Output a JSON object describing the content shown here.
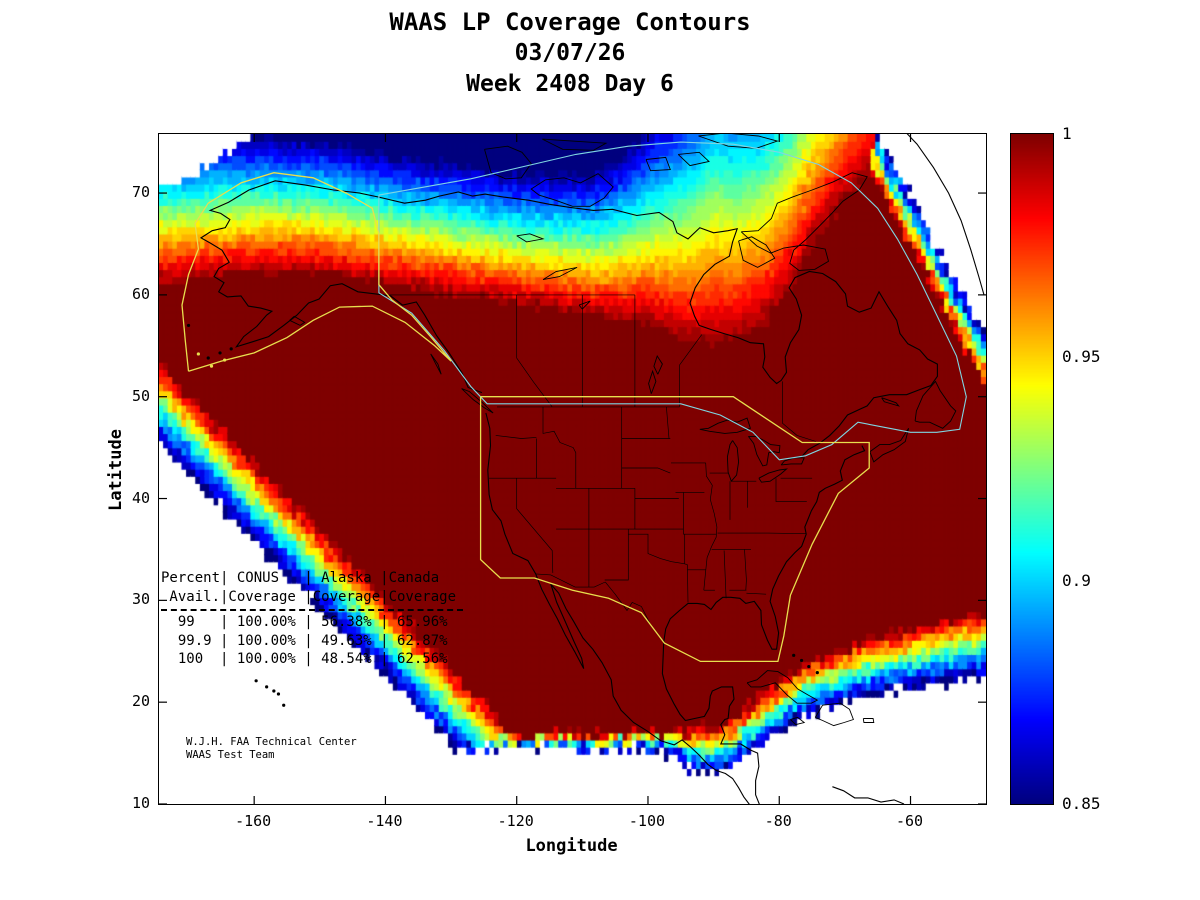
{
  "title": {
    "line1": "WAAS LP Coverage Contours",
    "line2": "03/07/26",
    "line3": "Week 2408 Day 6"
  },
  "axis": {
    "xlabel": "Longitude",
    "ylabel": "Latitude",
    "x_tick_labels": [
      "-160",
      "-140",
      "-120",
      "-100",
      "-80",
      "-60"
    ],
    "y_tick_labels": [
      "10",
      "20",
      "30",
      "40",
      "50",
      "60",
      "70"
    ]
  },
  "colorbar_labels": [
    "1",
    "0.95",
    "0.9",
    "0.85"
  ],
  "coverage_table": {
    "lines": [
      "Percent| CONUS   | Alaska |Canada",
      " Avail.|Coverage |Coverage|Coverage",
      "  99   | 100.00% | 56.38% | 65.96%",
      "  99.9 | 100.00% | 49.63% | 62.87%",
      "  100  | 100.00% | 48.54% | 62.56%"
    ]
  },
  "credit": {
    "line1": "W.J.H. FAA Technical Center",
    "line2": "WAAS Test Team"
  },
  "chart_data": {
    "type": "heatmap",
    "subtype": "filled-contour-coverage-map",
    "title": "WAAS LP Coverage Contours",
    "date": "03/07/26",
    "gps_week": "Week 2408 Day 6",
    "xlabel": "Longitude",
    "ylabel": "Latitude",
    "xlim": [
      -174.5,
      -48.5
    ],
    "ylim": [
      10,
      75.8
    ],
    "x_ticks": [
      -160,
      -140,
      -120,
      -100,
      -80,
      -60
    ],
    "y_ticks": [
      10,
      20,
      30,
      40,
      50,
      60,
      70
    ],
    "grid": false,
    "colorbar": {
      "min": 0.85,
      "max": 1.0,
      "colormap": "jet",
      "ticks": [
        {
          "value": 1.0,
          "label": "1"
        },
        {
          "value": 0.95,
          "label": "0.95"
        },
        {
          "value": 0.9,
          "label": "0.9"
        },
        {
          "value": 0.85,
          "label": "0.85"
        }
      ]
    },
    "availability_table": {
      "columns": [
        "Percent Avail.",
        "CONUS Coverage",
        "Alaska Coverage",
        "Canada Coverage"
      ],
      "rows": [
        {
          "avail": "99",
          "conus": "100.00%",
          "alaska": "56.38%",
          "canada": "65.96%"
        },
        {
          "avail": "99.9",
          "conus": "100.00%",
          "alaska": "49.63%",
          "canada": "62.87%"
        },
        {
          "avail": "100",
          "conus": "100.00%",
          "alaska": "48.54%",
          "canada": "62.56%"
        }
      ]
    },
    "colors": {
      "conus_alaska_boundary": "#e8df4e",
      "canada_boundary": "#7fd6e2",
      "coastline": "#000000",
      "no_coverage": "#ffffff"
    },
    "contour_model": {
      "grid_deg": 0.7,
      "white_threshold": 0.8465,
      "north_edge": [
        [
          -175,
          61
        ],
        [
          -160,
          62
        ],
        [
          -150,
          62
        ],
        [
          -140,
          61
        ],
        [
          -130,
          60
        ],
        [
          -120,
          59
        ],
        [
          -110,
          58
        ],
        [
          -100,
          57
        ],
        [
          -93,
          55
        ],
        [
          -87,
          55
        ],
        [
          -82,
          57
        ],
        [
          -78,
          60.5
        ],
        [
          -74,
          65.5
        ],
        [
          -70,
          69
        ],
        [
          -66,
          72
        ],
        [
          -62,
          75
        ],
        [
          -55,
          76.5
        ],
        [
          -48,
          77
        ]
      ],
      "north_rate": [
        [
          -175,
          0.0105
        ],
        [
          -140,
          0.0115
        ],
        [
          -120,
          0.0115
        ],
        [
          -108,
          0.0105
        ],
        [
          -98,
          0.007
        ],
        [
          -90,
          0.005
        ],
        [
          -82,
          0.0055
        ],
        [
          -48,
          0.006
        ]
      ],
      "sw_edge": {
        "lat_ref": 53,
        "lon_ref": -174,
        "slope": 0.667,
        "rate": 0.02
      },
      "south_edge": [
        [
          -130,
          17
        ],
        [
          -97,
          17
        ],
        [
          -88,
          18
        ],
        [
          -82,
          21
        ],
        [
          -76,
          24
        ],
        [
          -66,
          26.5
        ],
        [
          -48,
          29
        ]
      ],
      "south_rate": [
        [
          -130,
          0.1
        ],
        [
          -100,
          0.1
        ],
        [
          -93,
          0.035
        ],
        [
          -85,
          0.032
        ],
        [
          -75,
          0.028
        ],
        [
          -48,
          0.024
        ]
      ],
      "ne_white": {
        "lon_min": -66,
        "lat0": 77,
        "slope": 1.2,
        "band_deg": 5,
        "band_rate": 0.03
      },
      "tl_white": {
        "lon_max": -152,
        "lat0": 70,
        "lon_ref": -175,
        "slope": 0.382
      }
    }
  }
}
